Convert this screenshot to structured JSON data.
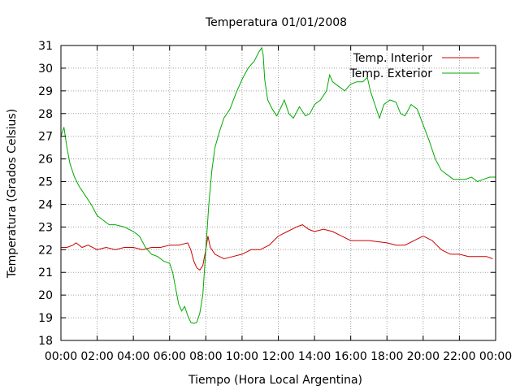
{
  "chart_data": {
    "type": "line",
    "title": "Temperatura 01/01/2008",
    "xlabel": "Tiempo (Hora Local Argentina)",
    "ylabel": "Temperatura (Grados Celsius)",
    "ylim": [
      18,
      31
    ],
    "xlim_hours": [
      0,
      24
    ],
    "grid": true,
    "legend_position": "top-right",
    "x_tick_labels": [
      "00:00",
      "02:00",
      "04:00",
      "06:00",
      "08:00",
      "10:00",
      "12:00",
      "14:00",
      "16:00",
      "18:00",
      "20:00",
      "22:00",
      "00:00"
    ],
    "y_tick_labels": [
      "18",
      "19",
      "20",
      "21",
      "22",
      "23",
      "24",
      "25",
      "26",
      "27",
      "28",
      "29",
      "30",
      "31"
    ],
    "series": [
      {
        "name": "Temp. Interior",
        "color": "#cc0000",
        "points": [
          [
            "00:00",
            22.1
          ],
          [
            "00:20",
            22.1
          ],
          [
            "00:40",
            22.2
          ],
          [
            "00:50",
            22.3
          ],
          [
            "01:10",
            22.1
          ],
          [
            "01:30",
            22.2
          ],
          [
            "02:00",
            22.0
          ],
          [
            "02:30",
            22.1
          ],
          [
            "03:00",
            22.0
          ],
          [
            "03:30",
            22.1
          ],
          [
            "04:00",
            22.1
          ],
          [
            "04:30",
            22.0
          ],
          [
            "05:00",
            22.1
          ],
          [
            "05:30",
            22.1
          ],
          [
            "06:00",
            22.2
          ],
          [
            "06:30",
            22.2
          ],
          [
            "07:00",
            22.3
          ],
          [
            "07:10",
            22.0
          ],
          [
            "07:20",
            21.5
          ],
          [
            "07:30",
            21.2
          ],
          [
            "07:40",
            21.1
          ],
          [
            "07:50",
            21.3
          ],
          [
            "08:00",
            22.0
          ],
          [
            "08:07",
            22.6
          ],
          [
            "08:15",
            22.1
          ],
          [
            "08:30",
            21.8
          ],
          [
            "09:00",
            21.6
          ],
          [
            "09:30",
            21.7
          ],
          [
            "10:00",
            21.8
          ],
          [
            "10:30",
            22.0
          ],
          [
            "11:00",
            22.0
          ],
          [
            "11:30",
            22.2
          ],
          [
            "12:00",
            22.6
          ],
          [
            "12:30",
            22.8
          ],
          [
            "13:00",
            23.0
          ],
          [
            "13:20",
            23.1
          ],
          [
            "13:40",
            22.9
          ],
          [
            "14:00",
            22.8
          ],
          [
            "14:30",
            22.9
          ],
          [
            "15:00",
            22.8
          ],
          [
            "15:30",
            22.6
          ],
          [
            "16:00",
            22.4
          ],
          [
            "17:00",
            22.4
          ],
          [
            "18:00",
            22.3
          ],
          [
            "18:30",
            22.2
          ],
          [
            "19:00",
            22.2
          ],
          [
            "19:30",
            22.4
          ],
          [
            "20:00",
            22.6
          ],
          [
            "20:30",
            22.4
          ],
          [
            "21:00",
            22.0
          ],
          [
            "21:30",
            21.8
          ],
          [
            "22:00",
            21.8
          ],
          [
            "22:30",
            21.7
          ],
          [
            "23:00",
            21.7
          ],
          [
            "23:30",
            21.7
          ],
          [
            "23:50",
            21.6
          ]
        ]
      },
      {
        "name": "Temp. Exterior",
        "color": "#00aa00",
        "points": [
          [
            "00:00",
            27.0
          ],
          [
            "00:10",
            27.4
          ],
          [
            "00:20",
            26.5
          ],
          [
            "00:30",
            25.8
          ],
          [
            "00:45",
            25.2
          ],
          [
            "01:00",
            24.8
          ],
          [
            "01:20",
            24.4
          ],
          [
            "01:40",
            24.0
          ],
          [
            "02:00",
            23.5
          ],
          [
            "02:20",
            23.3
          ],
          [
            "02:40",
            23.1
          ],
          [
            "03:00",
            23.1
          ],
          [
            "03:30",
            23.0
          ],
          [
            "04:00",
            22.8
          ],
          [
            "04:20",
            22.6
          ],
          [
            "04:40",
            22.1
          ],
          [
            "05:00",
            21.8
          ],
          [
            "05:20",
            21.7
          ],
          [
            "05:40",
            21.5
          ],
          [
            "06:00",
            21.4
          ],
          [
            "06:10",
            21.0
          ],
          [
            "06:20",
            20.3
          ],
          [
            "06:30",
            19.6
          ],
          [
            "06:40",
            19.3
          ],
          [
            "06:50",
            19.5
          ],
          [
            "07:00",
            19.1
          ],
          [
            "07:10",
            18.8
          ],
          [
            "07:20",
            18.75
          ],
          [
            "07:30",
            18.8
          ],
          [
            "07:40",
            19.2
          ],
          [
            "07:50",
            20.0
          ],
          [
            "08:00",
            22.0
          ],
          [
            "08:10",
            24.0
          ],
          [
            "08:20",
            25.5
          ],
          [
            "08:30",
            26.5
          ],
          [
            "08:45",
            27.2
          ],
          [
            "09:00",
            27.8
          ],
          [
            "09:20",
            28.2
          ],
          [
            "09:40",
            28.9
          ],
          [
            "10:00",
            29.5
          ],
          [
            "10:20",
            30.0
          ],
          [
            "10:40",
            30.3
          ],
          [
            "10:55",
            30.7
          ],
          [
            "11:05",
            30.9
          ],
          [
            "11:10",
            30.6
          ],
          [
            "11:15",
            29.5
          ],
          [
            "11:25",
            28.6
          ],
          [
            "11:40",
            28.2
          ],
          [
            "11:55",
            27.9
          ],
          [
            "12:10",
            28.3
          ],
          [
            "12:20",
            28.6
          ],
          [
            "12:35",
            28.0
          ],
          [
            "12:50",
            27.8
          ],
          [
            "13:10",
            28.3
          ],
          [
            "13:30",
            27.9
          ],
          [
            "13:45",
            28.0
          ],
          [
            "14:00",
            28.4
          ],
          [
            "14:20",
            28.6
          ],
          [
            "14:40",
            29.0
          ],
          [
            "14:50",
            29.7
          ],
          [
            "15:00",
            29.4
          ],
          [
            "15:20",
            29.2
          ],
          [
            "15:40",
            29.0
          ],
          [
            "16:00",
            29.3
          ],
          [
            "16:20",
            29.4
          ],
          [
            "16:40",
            29.4
          ],
          [
            "16:55",
            29.6
          ],
          [
            "17:05",
            29.0
          ],
          [
            "17:20",
            28.4
          ],
          [
            "17:35",
            27.8
          ],
          [
            "17:50",
            28.4
          ],
          [
            "18:10",
            28.6
          ],
          [
            "18:30",
            28.5
          ],
          [
            "18:45",
            28.0
          ],
          [
            "19:00",
            27.9
          ],
          [
            "19:20",
            28.4
          ],
          [
            "19:40",
            28.2
          ],
          [
            "20:00",
            27.5
          ],
          [
            "20:20",
            26.8
          ],
          [
            "20:40",
            26.0
          ],
          [
            "21:00",
            25.5
          ],
          [
            "21:20",
            25.3
          ],
          [
            "21:40",
            25.1
          ],
          [
            "22:00",
            25.1
          ],
          [
            "22:20",
            25.1
          ],
          [
            "22:40",
            25.2
          ],
          [
            "23:00",
            25.0
          ],
          [
            "23:20",
            25.1
          ],
          [
            "23:40",
            25.2
          ],
          [
            "23:59",
            25.2
          ]
        ]
      }
    ]
  }
}
